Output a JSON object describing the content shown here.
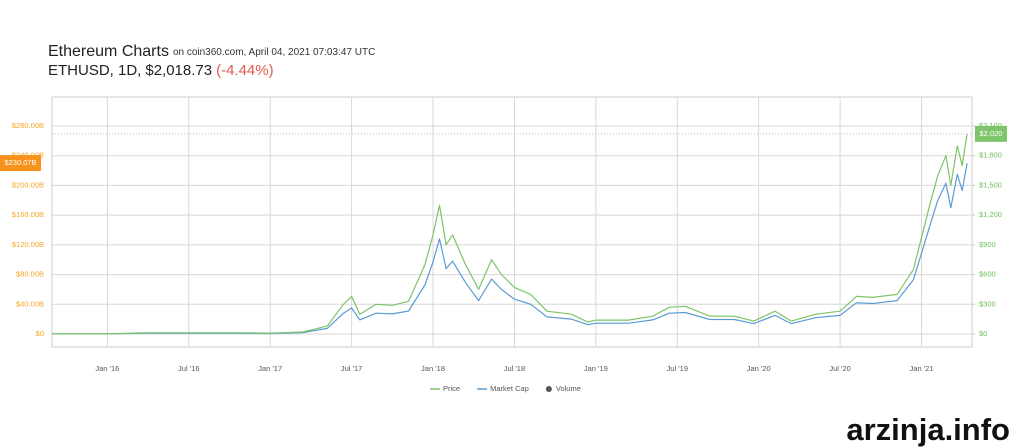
{
  "chart_data": {
    "type": "line",
    "title": "Ethereum Charts",
    "subtitle": "on coin360.com, April 04, 2021 07:03:47 UTC",
    "pair": "ETHUSD, 1D,",
    "price": "$2,018.73",
    "change": "(-4.44%)",
    "watermark": "arzinja.info",
    "x": [
      2015.66,
      2016.0,
      2016.2,
      2016.5,
      2016.8,
      2017.0,
      2017.2,
      2017.35,
      2017.45,
      2017.5,
      2017.55,
      2017.65,
      2017.75,
      2017.85,
      2017.95,
      2018.0,
      2018.04,
      2018.08,
      2018.12,
      2018.2,
      2018.28,
      2018.36,
      2018.42,
      2018.5,
      2018.6,
      2018.7,
      2018.85,
      2018.95,
      2019.0,
      2019.2,
      2019.35,
      2019.45,
      2019.55,
      2019.7,
      2019.85,
      2019.97,
      2020.1,
      2020.2,
      2020.35,
      2020.5,
      2020.6,
      2020.7,
      2020.85,
      2020.95,
      2021.05,
      2021.1,
      2021.15,
      2021.18,
      2021.22,
      2021.25,
      2021.28
    ],
    "series": [
      {
        "name": "Price",
        "color": "#7ec46a",
        "axis": "y2",
        "last_label": "$2,020",
        "values": [
          1,
          1,
          11,
          12,
          12,
          8,
          20,
          80,
          300,
          380,
          200,
          300,
          290,
          330,
          700,
          1000,
          1300,
          900,
          1000,
          700,
          450,
          750,
          600,
          470,
          400,
          230,
          200,
          120,
          140,
          140,
          180,
          270,
          280,
          180,
          180,
          130,
          230,
          130,
          200,
          230,
          380,
          370,
          400,
          650,
          1300,
          1600,
          1800,
          1500,
          1900,
          1700,
          2020
        ]
      },
      {
        "name": "Market Cap",
        "color": "#5b9bd5",
        "axis": "y",
        "last_label": "$230.07B",
        "values": [
          0.1,
          0.1,
          0.9,
          1,
          1,
          0.7,
          1.8,
          7.5,
          28,
          35,
          19,
          28,
          27,
          31,
          66,
          97,
          128,
          88,
          98,
          69,
          45,
          74,
          60,
          47,
          40,
          23,
          20,
          12.5,
          14.5,
          14.5,
          19,
          28,
          29,
          19.5,
          19.5,
          14,
          25,
          14,
          22,
          25,
          42,
          41,
          45,
          73,
          145,
          180,
          203,
          170,
          215,
          193,
          230.07
        ]
      }
    ],
    "volume": {
      "name": "Volume",
      "color": "#555555"
    },
    "xlim": [
      2015.66,
      2021.31
    ],
    "xticks": [
      {
        "value": 2016,
        "label": "Jan '16"
      },
      {
        "value": 2016.5,
        "label": "Jul '16"
      },
      {
        "value": 2017,
        "label": "Jan '17"
      },
      {
        "value": 2017.5,
        "label": "Jul '17"
      },
      {
        "value": 2018,
        "label": "Jan '18"
      },
      {
        "value": 2018.5,
        "label": "Jul '18"
      },
      {
        "value": 2019,
        "label": "Jan '19"
      },
      {
        "value": 2019.5,
        "label": "Jul '19"
      },
      {
        "value": 2020,
        "label": "Jan '20"
      },
      {
        "value": 2020.5,
        "label": "Jul '20"
      },
      {
        "value": 2021,
        "label": "Jan '21"
      }
    ],
    "ylim": [
      -17.5,
      319
    ],
    "yticks": [
      {
        "value": 0,
        "label": "$0"
      },
      {
        "value": 40,
        "label": "$40.00B"
      },
      {
        "value": 80,
        "label": "$80.00B"
      },
      {
        "value": 120,
        "label": "$120.00B"
      },
      {
        "value": 160,
        "label": "$160.00B"
      },
      {
        "value": 200,
        "label": "$200.00B"
      },
      {
        "value": 240,
        "label": "$240.00B"
      },
      {
        "value": 280,
        "label": "$280.00B"
      }
    ],
    "y2lim": [
      -131,
      2392
    ],
    "y2ticks": [
      {
        "value": 0,
        "label": "$0"
      },
      {
        "value": 300,
        "label": "$300"
      },
      {
        "value": 600,
        "label": "$600"
      },
      {
        "value": 900,
        "label": "$900"
      },
      {
        "value": 1200,
        "label": "$1,200"
      },
      {
        "value": 1500,
        "label": "$1,500"
      },
      {
        "value": 1800,
        "label": "$1,800"
      },
      {
        "value": 2100,
        "label": "$2,100"
      }
    ],
    "ytick_color": "#f5a623",
    "y2tick_color": "#6cbf5a",
    "grid": true
  }
}
